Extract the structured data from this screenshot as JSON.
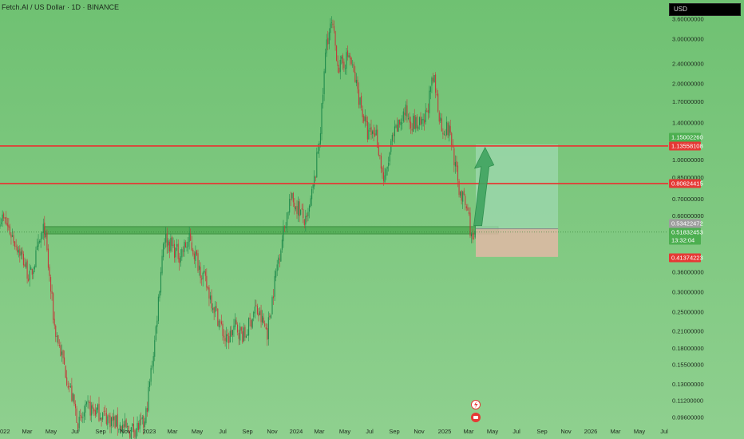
{
  "header": {
    "symbol_title": "Fetch.AI / US Dollar · 1D · BINANCE",
    "currency": "USD"
  },
  "chart_data": {
    "type": "candlestick",
    "title": "Fetch.AI / US Dollar · 1D · BINANCE",
    "y_scale": "log",
    "y_ticks": [
      "3.60000000",
      "3.00000000",
      "2.40000000",
      "2.00000000",
      "1.70000000",
      "1.40000000",
      "1.00000000",
      "0.85000000",
      "0.70000000",
      "0.60000000",
      "0.36000000",
      "0.30000000",
      "0.25000000",
      "0.21000000",
      "0.18000000",
      "0.15500000",
      "0.13000000",
      "0.11200000",
      "0.09600000"
    ],
    "x_ticks": [
      "022",
      "Mar",
      "May",
      "Jul",
      "Sep",
      "Nov",
      "2023",
      "Mar",
      "May",
      "Jul",
      "Sep",
      "Nov",
      "2024",
      "Mar",
      "May",
      "Jul",
      "Sep",
      "Nov",
      "2025",
      "Mar",
      "May",
      "Jul",
      "Sep",
      "Nov",
      "2026",
      "Mar",
      "May",
      "Jul"
    ],
    "price_tags": [
      {
        "value": "1.15002260",
        "style": "green"
      },
      {
        "value": "1.13558108",
        "style": "red"
      },
      {
        "value": "0.80624415",
        "style": "red"
      },
      {
        "value": "0.53422472",
        "style": "gray"
      },
      {
        "value": "0.51832453",
        "style": "green"
      },
      {
        "value": "13:32:04",
        "style": "green"
      },
      {
        "value": "0.41374223",
        "style": "red"
      }
    ],
    "horizontal_lines": [
      {
        "price": 1.13558108,
        "color": "#e53935"
      },
      {
        "price": 0.80624415,
        "color": "#e53935"
      }
    ],
    "support_zone": {
      "from_date": "2022-04-15",
      "to_date": "2025-03-20",
      "price_low": 0.51,
      "price_high": 0.545
    },
    "position": {
      "start_date": "2025-03-20",
      "end_date": "2025-10-10",
      "entry": 0.53422472,
      "target": 1.1500226,
      "stop": 0.41374223
    },
    "arrow": {
      "from_date": "2025-03-25",
      "from_price": 0.55,
      "to_date": "2025-04-12",
      "to_price": 1.12
    },
    "last_price": 0.51832453,
    "candles_anchor_path": [
      {
        "date": "2021-12-20",
        "price": 0.62
      },
      {
        "date": "2022-01-10",
        "price": 0.56
      },
      {
        "date": "2022-02-15",
        "price": 0.43
      },
      {
        "date": "2022-03-10",
        "price": 0.34
      },
      {
        "date": "2022-04-15",
        "price": 0.54
      },
      {
        "date": "2022-05-10",
        "price": 0.22
      },
      {
        "date": "2022-06-20",
        "price": 0.12
      },
      {
        "date": "2022-07-10",
        "price": 0.09
      },
      {
        "date": "2022-08-01",
        "price": 0.105
      },
      {
        "date": "2022-09-01",
        "price": 0.1
      },
      {
        "date": "2022-10-15",
        "price": 0.09
      },
      {
        "date": "2022-11-10",
        "price": 0.085
      },
      {
        "date": "2022-12-20",
        "price": 0.09
      },
      {
        "date": "2023-01-15",
        "price": 0.2
      },
      {
        "date": "2023-02-05",
        "price": 0.5
      },
      {
        "date": "2023-03-15",
        "price": 0.42
      },
      {
        "date": "2023-04-10",
        "price": 0.48
      },
      {
        "date": "2023-05-10",
        "price": 0.36
      },
      {
        "date": "2023-06-15",
        "price": 0.25
      },
      {
        "date": "2023-07-10",
        "price": 0.19
      },
      {
        "date": "2023-08-01",
        "price": 0.22
      },
      {
        "date": "2023-08-25",
        "price": 0.2
      },
      {
        "date": "2023-09-20",
        "price": 0.26
      },
      {
        "date": "2023-10-20",
        "price": 0.21
      },
      {
        "date": "2023-11-15",
        "price": 0.4
      },
      {
        "date": "2023-12-15",
        "price": 0.7
      },
      {
        "date": "2024-01-05",
        "price": 0.65
      },
      {
        "date": "2024-01-25",
        "price": 0.55
      },
      {
        "date": "2024-02-15",
        "price": 0.85
      },
      {
        "date": "2024-03-01",
        "price": 1.4
      },
      {
        "date": "2024-03-15",
        "price": 3.0
      },
      {
        "date": "2024-03-28",
        "price": 3.4
      },
      {
        "date": "2024-04-15",
        "price": 2.3
      },
      {
        "date": "2024-05-10",
        "price": 2.6
      },
      {
        "date": "2024-06-10",
        "price": 1.6
      },
      {
        "date": "2024-06-25",
        "price": 1.25
      },
      {
        "date": "2024-07-15",
        "price": 1.3
      },
      {
        "date": "2024-08-05",
        "price": 0.8
      },
      {
        "date": "2024-08-25",
        "price": 1.2
      },
      {
        "date": "2024-09-25",
        "price": 1.55
      },
      {
        "date": "2024-10-15",
        "price": 1.4
      },
      {
        "date": "2024-11-10",
        "price": 1.35
      },
      {
        "date": "2024-12-05",
        "price": 2.1
      },
      {
        "date": "2024-12-25",
        "price": 1.35
      },
      {
        "date": "2025-01-15",
        "price": 1.3
      },
      {
        "date": "2025-02-05",
        "price": 0.78
      },
      {
        "date": "2025-03-01",
        "price": 0.62
      },
      {
        "date": "2025-03-12",
        "price": 0.46
      },
      {
        "date": "2025-03-20",
        "price": 0.52
      }
    ]
  }
}
